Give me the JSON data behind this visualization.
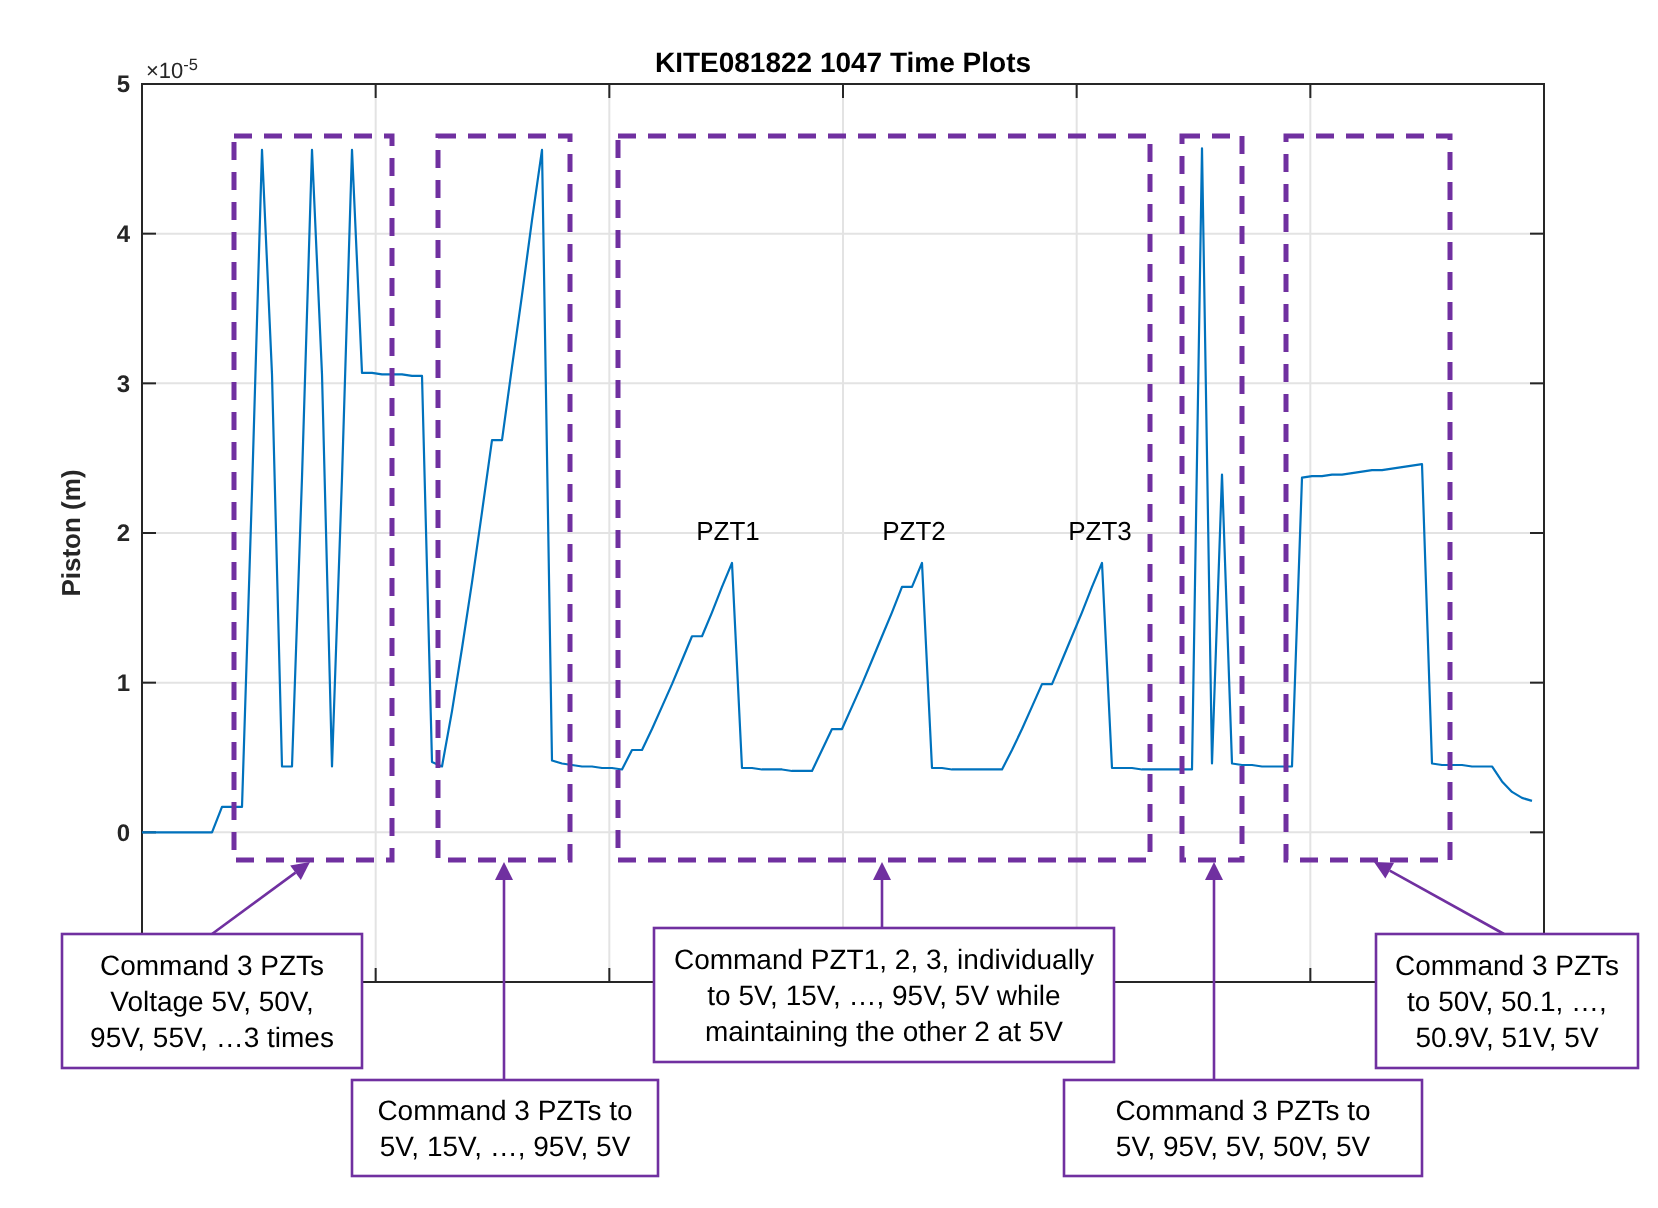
{
  "chart_data": {
    "type": "line",
    "title": "KITE081822 1047 Time Plots",
    "ylabel": "Piston (m)",
    "categories": [
      null,
      null,
      null,
      null,
      null,
      null,
      null,
      null,
      null,
      null,
      null,
      null,
      null,
      null,
      null,
      null,
      null,
      null,
      null,
      null,
      null,
      null,
      null,
      null,
      null,
      null,
      null,
      null,
      null,
      null,
      null,
      null,
      null,
      null,
      null,
      null,
      null,
      null,
      null,
      null,
      null,
      null,
      null,
      null,
      null,
      null,
      null,
      null,
      null,
      null,
      null,
      null,
      null,
      null,
      null,
      null,
      null,
      null,
      null,
      null,
      null,
      null,
      null,
      null,
      null,
      null,
      null,
      null,
      null,
      null,
      null,
      null,
      null,
      null,
      null,
      null,
      null,
      null,
      null,
      null,
      null,
      null,
      null,
      null,
      null,
      null,
      null,
      null,
      null,
      null,
      null,
      null,
      null,
      null,
      null,
      null,
      null,
      null,
      null,
      null,
      null,
      null,
      null,
      null,
      null,
      null,
      null,
      null,
      null,
      null,
      null,
      null,
      null,
      null,
      null,
      null,
      null,
      null,
      null,
      null,
      null,
      null,
      null,
      null,
      null,
      null,
      null,
      null,
      null,
      null,
      null,
      null,
      null,
      null,
      null,
      null,
      null,
      null,
      null,
      null
    ],
    "ylim": [
      -1,
      5
    ],
    "yticks": [
      0,
      1,
      2,
      3,
      4,
      5
    ],
    "tick_labels": "y",
    "grid": true,
    "marker": "none",
    "line_style": "solid",
    "series": [
      {
        "color": "#0072bd",
        "values": [
          0,
          0,
          0,
          0,
          0,
          0,
          0,
          0,
          0.17,
          0.17,
          0.17,
          2.28,
          4.56,
          3.06,
          0.44,
          0.44,
          2.37,
          4.56,
          3.06,
          0.44,
          2.37,
          4.56,
          3.07,
          3.07,
          3.06,
          3.06,
          3.06,
          3.05,
          3.05,
          0.47,
          0.44,
          0.81,
          1.23,
          1.67,
          2.14,
          2.62,
          2.62,
          3.11,
          3.59,
          4.09,
          4.56,
          0.48,
          0.46,
          0.45,
          0.44,
          0.44,
          0.43,
          0.43,
          0.42,
          0.55,
          0.55,
          0.69,
          0.84,
          0.99,
          1.15,
          1.31,
          1.31,
          1.47,
          1.64,
          1.8,
          0.43,
          0.43,
          0.42,
          0.42,
          0.42,
          0.41,
          0.41,
          0.41,
          0.55,
          0.69,
          0.69,
          0.84,
          0.99,
          1.15,
          1.31,
          1.47,
          1.64,
          1.64,
          1.8,
          0.43,
          0.43,
          0.42,
          0.42,
          0.42,
          0.42,
          0.42,
          0.42,
          0.55,
          0.69,
          0.84,
          0.99,
          0.99,
          1.15,
          1.31,
          1.47,
          1.64,
          1.8,
          0.43,
          0.43,
          0.43,
          0.42,
          0.42,
          0.42,
          0.42,
          0.42,
          0.42,
          4.57,
          0.46,
          2.39,
          0.46,
          0.45,
          0.45,
          0.44,
          0.44,
          0.44,
          0.44,
          2.37,
          2.38,
          2.38,
          2.39,
          2.39,
          2.4,
          2.41,
          2.42,
          2.42,
          2.43,
          2.44,
          2.45,
          2.46,
          0.46,
          0.45,
          0.45,
          0.45,
          0.44,
          0.44,
          0.44,
          0.34,
          0.27,
          0.23,
          0.21
        ]
      }
    ],
    "annotations": [
      "×10$^{-5}$",
      "PZT1",
      "PZT2",
      "PZT3",
      "Command 3 PZTs\nVoltage 5V, 50V,\n95V, 55V, …3 times",
      "Command 3 PZTs to\n5V, 15V, …, 95V, 5V",
      "Command PZT1, 2, 3, individually\nto 5V, 15V, …, 95V, 5V while\nmaintaining the other 2 at 5V",
      "Command 3 PZTs to\n5V, 95V, 5V, 50V, 5V",
      "Command 3 PZTs\nto 50V, 50.1, …,\n50.9V, 51V, 5V"
    ]
  }
}
